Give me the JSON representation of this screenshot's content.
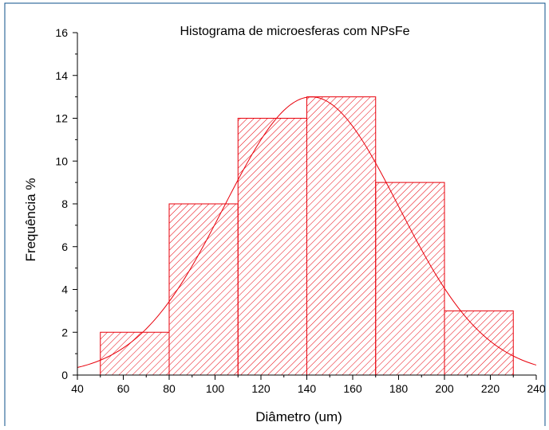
{
  "chart_data": {
    "type": "bar",
    "title": "Histograma de microesferas com NPsFe",
    "xlabel": "Diâmetro (um)",
    "ylabel": "Frequência %",
    "xlim": [
      40,
      240
    ],
    "ylim": [
      0,
      16
    ],
    "x_ticks": [
      40,
      60,
      80,
      100,
      120,
      140,
      160,
      180,
      200,
      220,
      240
    ],
    "y_ticks": [
      0,
      2,
      4,
      6,
      8,
      10,
      12,
      14,
      16
    ],
    "bins": [
      {
        "start": 50,
        "end": 80,
        "value": 2
      },
      {
        "start": 80,
        "end": 110,
        "value": 8
      },
      {
        "start": 110,
        "end": 140,
        "value": 12
      },
      {
        "start": 140,
        "end": 170,
        "value": 13
      },
      {
        "start": 170,
        "end": 200,
        "value": 9
      },
      {
        "start": 200,
        "end": 230,
        "value": 3
      }
    ],
    "fit_curve": {
      "type": "gaussian",
      "peak": 13,
      "mean": 142,
      "sigma": 38
    },
    "grid": false,
    "legend": "none",
    "colors": {
      "bars": "#e8000b",
      "curve": "#e8000b",
      "frame": "#0b4f8a",
      "axes": "#000000"
    }
  }
}
